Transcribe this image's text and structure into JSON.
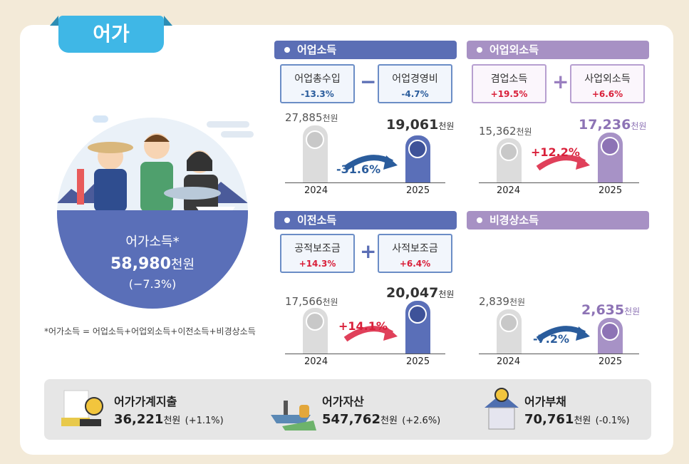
{
  "tab_title": "어가",
  "circle": {
    "label": "어가소득*",
    "value": "58,980",
    "unit": "천원",
    "change": "(−7.3%)"
  },
  "footnote": "*어가소득 = 어업소득+어업외소득+이전소득+비경상소득",
  "sections": {
    "fishery_income": {
      "title": "어업소득",
      "sub_left": {
        "name": "어업총수입",
        "pct": "-13.3%"
      },
      "sub_right": {
        "name": "어업경영비",
        "pct": "-4.7%"
      },
      "operator": "−",
      "v2024": "27,885",
      "v2025": "19,061",
      "unit": "천원",
      "change": "-31.6%",
      "y2024": "2024",
      "y2025": "2025"
    },
    "non_fishery_income": {
      "title": "어업외소득",
      "sub_left": {
        "name": "겸업소득",
        "pct": "+19.5%"
      },
      "sub_right": {
        "name": "사업외소득",
        "pct": "+6.6%"
      },
      "operator": "+",
      "v2024": "15,362",
      "v2025": "17,236",
      "unit": "천원",
      "change": "+12.2%",
      "y2024": "2024",
      "y2025": "2025"
    },
    "transfer_income": {
      "title": "이전소득",
      "sub_left": {
        "name": "공적보조금",
        "pct": "+14.3%"
      },
      "sub_right": {
        "name": "사적보조금",
        "pct": "+6.4%"
      },
      "operator": "+",
      "v2024": "17,566",
      "v2025": "20,047",
      "unit": "천원",
      "change": "+14.1%",
      "y2024": "2024",
      "y2025": "2025"
    },
    "irregular_income": {
      "title": "비경상소득",
      "v2024": "2,839",
      "v2025": "2,635",
      "unit": "천원",
      "change": "-7.2%",
      "y2024": "2024",
      "y2025": "2025"
    }
  },
  "bottom": {
    "expenditure": {
      "title": "어가가계지출",
      "value": "36,221",
      "unit": "천원",
      "change": "(+1.1%)"
    },
    "assets": {
      "title": "어가자산",
      "value": "547,762",
      "unit": "천원",
      "change": "(+2.6%)"
    },
    "debt": {
      "title": "어가부채",
      "value": "70,761",
      "unit": "천원",
      "change": "(-0.1%)"
    }
  },
  "colors": {
    "blue": "#5b6eb5",
    "purple": "#a791c4",
    "sky": "#3fb7e6",
    "red": "#d9203a",
    "navy": "#2a5c9c"
  }
}
